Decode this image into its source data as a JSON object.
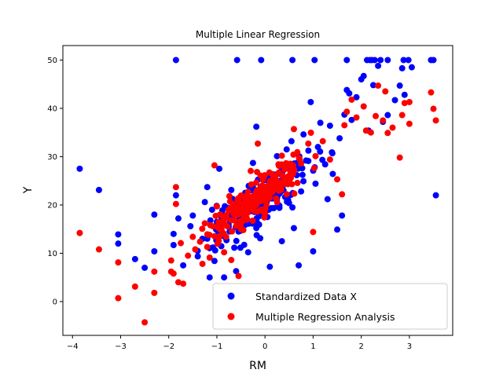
{
  "chart_data": {
    "type": "scatter",
    "title": "Multiple Linear Regression",
    "xlabel": "RM",
    "ylabel": "Y",
    "xlim": [
      -4.2,
      3.9
    ],
    "ylim": [
      -7,
      53
    ],
    "xticks": [
      -4,
      -3,
      -2,
      -1,
      0,
      1,
      2,
      3
    ],
    "yticks": [
      0,
      10,
      20,
      30,
      40,
      50
    ],
    "legend_position": "lower-right",
    "series": [
      {
        "name": "Standardized Data X",
        "color": "#0000ff",
        "points": [
          [
            -1.85,
            50
          ],
          [
            -0.58,
            50
          ],
          [
            -0.08,
            50
          ],
          [
            0.57,
            50
          ],
          [
            1.03,
            50
          ],
          [
            1.7,
            50
          ],
          [
            2.12,
            50
          ],
          [
            2.18,
            50
          ],
          [
            2.22,
            50
          ],
          [
            2.28,
            50
          ],
          [
            2.4,
            50
          ],
          [
            2.55,
            50
          ],
          [
            2.88,
            50
          ],
          [
            2.98,
            50
          ],
          [
            3.45,
            50
          ],
          [
            3.5,
            50
          ],
          [
            -3.85,
            27.5
          ],
          [
            -3.45,
            23.1
          ],
          [
            -3.05,
            13.9
          ],
          [
            -3.05,
            12
          ],
          [
            -2.7,
            8.8
          ],
          [
            -2.5,
            7
          ],
          [
            -2.3,
            18
          ],
          [
            -2.3,
            10.4
          ],
          [
            -1.9,
            14
          ],
          [
            -1.9,
            11.7
          ],
          [
            -1.85,
            22
          ],
          [
            -1.8,
            17.2
          ],
          [
            -1.7,
            7.5
          ],
          [
            -1.55,
            15.6
          ],
          [
            -1.5,
            17.8
          ],
          [
            -1.4,
            10.5
          ],
          [
            -1.3,
            13
          ],
          [
            -1.25,
            20.6
          ],
          [
            -1.2,
            23.7
          ],
          [
            -1.15,
            5
          ],
          [
            -1.1,
            19
          ],
          [
            -1.05,
            8.4
          ],
          [
            -1.0,
            16.5
          ],
          [
            -0.95,
            27.5
          ],
          [
            -0.9,
            18
          ],
          [
            -0.85,
            5
          ],
          [
            -0.8,
            12.7
          ],
          [
            -0.7,
            23.1
          ],
          [
            -0.6,
            6.3
          ],
          [
            -0.55,
            14.5
          ],
          [
            -0.4,
            19
          ],
          [
            -0.35,
            10.2
          ],
          [
            -0.25,
            28.7
          ],
          [
            -0.2,
            22
          ],
          [
            -0.18,
            36.2
          ],
          [
            -0.1,
            13.1
          ],
          [
            -0.05,
            24
          ],
          [
            0.05,
            17.5
          ],
          [
            0.1,
            7.2
          ],
          [
            0.15,
            21.7
          ],
          [
            0.2,
            26.3
          ],
          [
            0.25,
            30.1
          ],
          [
            0.3,
            19.4
          ],
          [
            0.35,
            12.5
          ],
          [
            0.4,
            25
          ],
          [
            0.45,
            31.5
          ],
          [
            0.5,
            20.4
          ],
          [
            0.55,
            33.2
          ],
          [
            0.6,
            15.2
          ],
          [
            0.65,
            27.5
          ],
          [
            0.7,
            7.5
          ],
          [
            0.75,
            22.8
          ],
          [
            0.8,
            34.6
          ],
          [
            0.9,
            29.1
          ],
          [
            0.95,
            41.3
          ],
          [
            1.0,
            10.4
          ],
          [
            1.05,
            24.4
          ],
          [
            1.1,
            32
          ],
          [
            1.15,
            37
          ],
          [
            1.25,
            28.4
          ],
          [
            1.3,
            21.2
          ],
          [
            1.35,
            36.4
          ],
          [
            1.4,
            30.7
          ],
          [
            1.5,
            14.9
          ],
          [
            1.55,
            33.8
          ],
          [
            1.6,
            17.8
          ],
          [
            1.65,
            38.7
          ],
          [
            1.7,
            43.8
          ],
          [
            1.75,
            43.1
          ],
          [
            1.8,
            37.6
          ],
          [
            1.9,
            42.3
          ],
          [
            2.0,
            46.0
          ],
          [
            2.05,
            46.7
          ],
          [
            2.15,
            35.4
          ],
          [
            2.25,
            44.8
          ],
          [
            2.35,
            48.8
          ],
          [
            2.45,
            37.2
          ],
          [
            2.55,
            38.6
          ],
          [
            2.7,
            41.7
          ],
          [
            2.8,
            44.7
          ],
          [
            2.85,
            48.3
          ],
          [
            2.9,
            42.8
          ],
          [
            3.05,
            48.5
          ],
          [
            3.55,
            22
          ]
        ],
        "cloud": {
          "cx": -0.15,
          "cy": 20.5,
          "sx": 0.5,
          "sy": 4.0,
          "rho": 0.78,
          "n": 200,
          "seed": 7
        }
      },
      {
        "name": "Multiple Regression Analysis",
        "color": "#ff0000",
        "points": [
          [
            -3.85,
            14.2
          ],
          [
            -3.45,
            10.8
          ],
          [
            -3.05,
            8.1
          ],
          [
            -3.05,
            0.7
          ],
          [
            -2.7,
            3.1
          ],
          [
            -2.5,
            -4.3
          ],
          [
            -2.3,
            6.2
          ],
          [
            -2.3,
            1.8
          ],
          [
            -1.95,
            8.5
          ],
          [
            -1.95,
            6.2
          ],
          [
            -1.9,
            5.8
          ],
          [
            -1.85,
            23.7
          ],
          [
            -1.85,
            20.2
          ],
          [
            -1.8,
            4.0
          ],
          [
            -1.75,
            12.1
          ],
          [
            -1.7,
            3.7
          ],
          [
            -1.6,
            9.5
          ],
          [
            -1.5,
            13.4
          ],
          [
            -1.45,
            10.8
          ],
          [
            -1.35,
            12.4
          ],
          [
            -1.3,
            7.8
          ],
          [
            -1.25,
            16.2
          ],
          [
            -1.2,
            11.3
          ],
          [
            -1.15,
            9.1
          ],
          [
            -1.05,
            28.2
          ],
          [
            -1.0,
            19.7
          ],
          [
            -0.95,
            13.5
          ],
          [
            -0.85,
            10.2
          ],
          [
            -0.8,
            17.9
          ],
          [
            -0.7,
            8.6
          ],
          [
            -0.55,
            5.3
          ],
          [
            -0.45,
            14.8
          ],
          [
            -0.3,
            20.3
          ],
          [
            -0.15,
            32.7
          ],
          [
            0.0,
            18.2
          ],
          [
            0.15,
            26.4
          ],
          [
            0.35,
            30.2
          ],
          [
            0.45,
            22.2
          ],
          [
            0.6,
            35.7
          ],
          [
            0.75,
            28.6
          ],
          [
            0.9,
            32.7
          ],
          [
            1.0,
            14.4
          ],
          [
            1.05,
            30.1
          ],
          [
            1.2,
            33.2
          ],
          [
            1.35,
            29.4
          ],
          [
            1.5,
            25.3
          ],
          [
            1.6,
            22.2
          ],
          [
            1.65,
            36.5
          ],
          [
            1.7,
            39.3
          ],
          [
            1.8,
            41.8
          ],
          [
            1.9,
            38.1
          ],
          [
            2.05,
            40.4
          ],
          [
            2.1,
            35.4
          ],
          [
            2.2,
            35.0
          ],
          [
            2.3,
            38.4
          ],
          [
            2.35,
            44.7
          ],
          [
            2.45,
            37.5
          ],
          [
            2.5,
            43.5
          ],
          [
            2.55,
            34.9
          ],
          [
            2.65,
            36.0
          ],
          [
            2.8,
            29.8
          ],
          [
            2.85,
            38.6
          ],
          [
            2.9,
            41.1
          ],
          [
            3.0,
            41.3
          ],
          [
            3.0,
            36.8
          ],
          [
            3.45,
            43.3
          ],
          [
            3.5,
            39.9
          ],
          [
            3.55,
            37.5
          ]
        ],
        "cloud": {
          "cx": -0.15,
          "cy": 21.5,
          "sx": 0.5,
          "sy": 4.2,
          "rho": 0.88,
          "n": 220,
          "seed": 13
        }
      }
    ]
  }
}
